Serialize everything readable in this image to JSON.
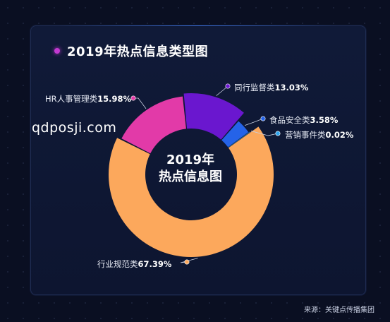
{
  "title": "2019年热点信息类型图",
  "center": {
    "line1": "2019年",
    "line2": "热点信息图"
  },
  "watermark": "qdposji.com",
  "source": "来源：关键点传播集团",
  "colors": {
    "行业规范类": "#fca85c",
    "HR人事管理类": "#e23aa8",
    "同行监督类": "#6a17cf",
    "食品安全类": "#2563e8",
    "营销事件类": "#2fa5ef"
  },
  "chart_data": {
    "type": "pie",
    "title": "2019年热点信息类型图",
    "slices": [
      {
        "name": "同行监督类",
        "value": 13.03,
        "label": "13.03%"
      },
      {
        "name": "食品安全类",
        "value": 3.58,
        "label": "3.58%"
      },
      {
        "name": "营销事件类",
        "value": 0.02,
        "label": "0.02%"
      },
      {
        "name": "行业规范类",
        "value": 67.39,
        "label": "67.39%"
      },
      {
        "name": "HR人事管理类",
        "value": 15.98,
        "label": "15.98%"
      }
    ],
    "legend": false
  }
}
